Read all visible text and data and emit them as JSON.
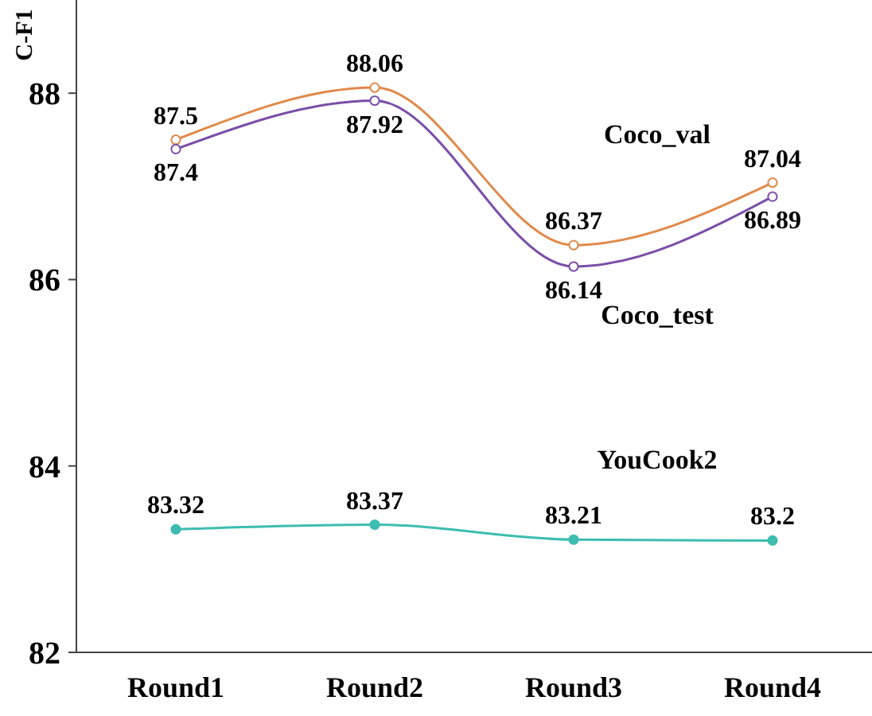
{
  "chart_data": {
    "type": "line",
    "ylabel": "C-F1",
    "categories": [
      "Round1",
      "Round2",
      "Round3",
      "Round4"
    ],
    "series": [
      {
        "name": "Coco_val",
        "color": "#e0894a",
        "values": [
          87.5,
          88.06,
          86.37,
          87.04
        ]
      },
      {
        "name": "Coco_test",
        "color": "#7b4ea8",
        "values": [
          87.4,
          87.92,
          86.14,
          86.89
        ]
      },
      {
        "name": "YouCook2",
        "color": "#3dbdb0",
        "values": [
          83.32,
          83.37,
          83.21,
          83.2
        ]
      }
    ],
    "ylim": [
      82,
      89
    ],
    "yticks": [
      82,
      84,
      86,
      88
    ],
    "grid": false,
    "marker": "circle",
    "line_style": "solid",
    "data_labels": true
  }
}
